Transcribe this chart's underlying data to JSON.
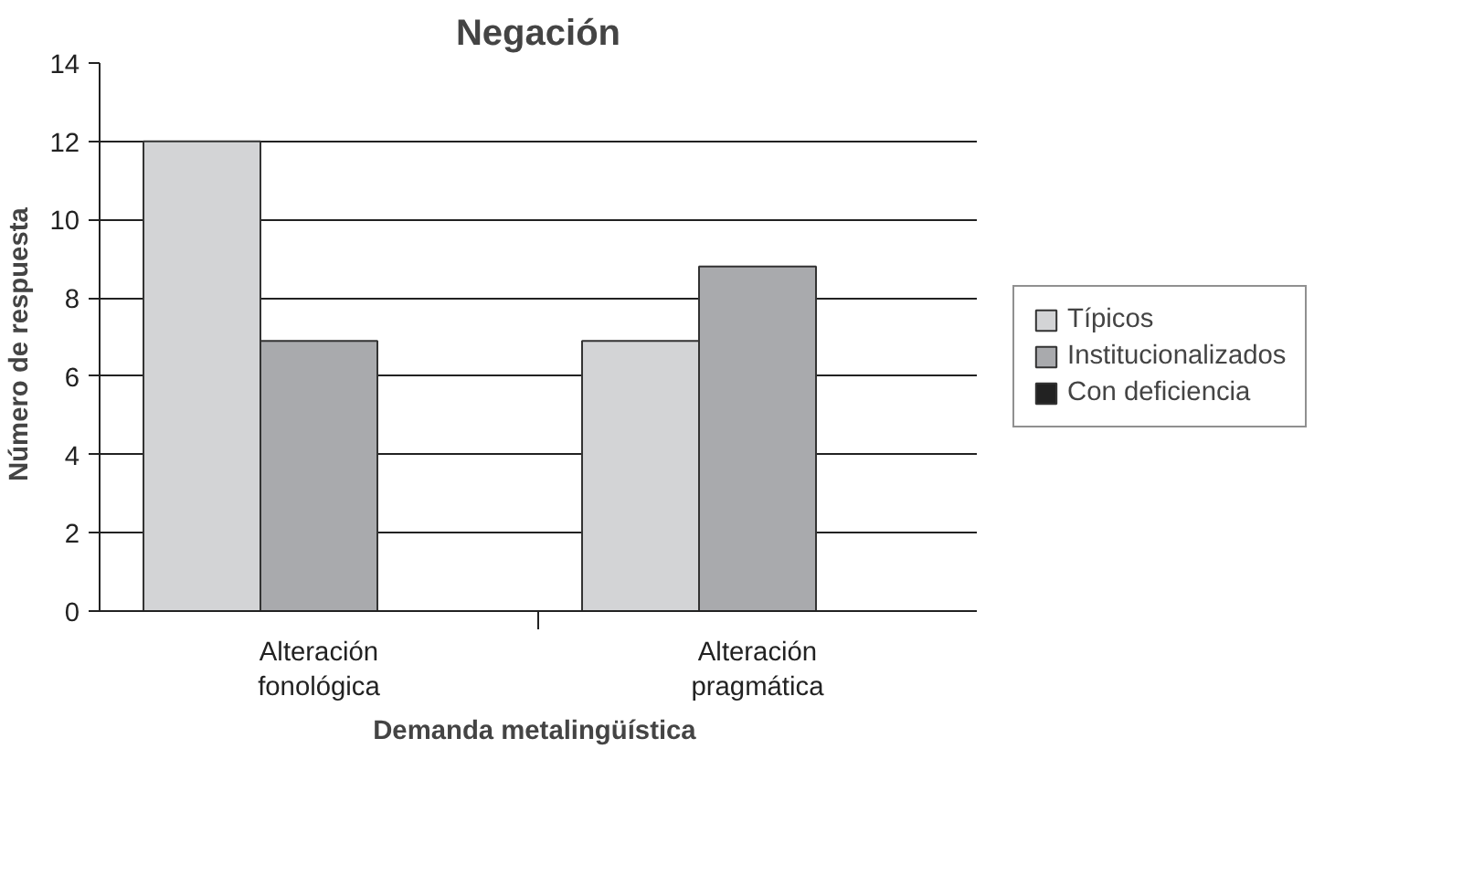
{
  "chart_data": {
    "type": "bar",
    "title": "Negación",
    "xlabel": "Demanda  metalingüística",
    "ylabel": "Número  de  respuesta",
    "categories": [
      "Alteración fonológica",
      "Alteración pragmática"
    ],
    "series": [
      {
        "name": "Típicos",
        "color": "#d3d4d6",
        "values": [
          12,
          6.9
        ]
      },
      {
        "name": "Institucionalizados",
        "color": "#a9aaad",
        "values": [
          6.9,
          8.8
        ]
      },
      {
        "name": "Con deficiencia",
        "color": "#222222",
        "values": [
          null,
          null
        ]
      }
    ],
    "ylim": [
      0,
      14
    ],
    "yticks": [
      0,
      2,
      4,
      6,
      8,
      10,
      12,
      14
    ],
    "grid": "y",
    "legend": "right"
  }
}
